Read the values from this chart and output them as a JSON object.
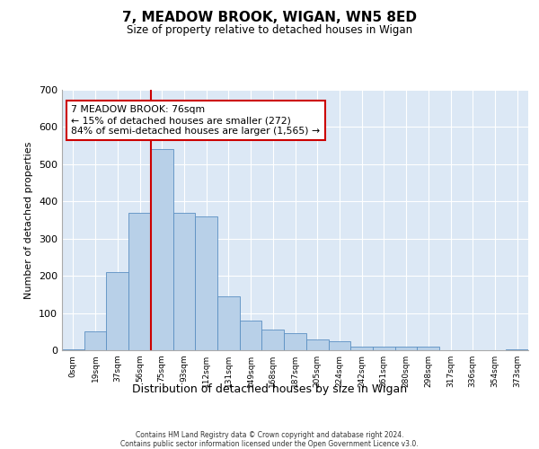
{
  "title": "7, MEADOW BROOK, WIGAN, WN5 8ED",
  "subtitle": "Size of property relative to detached houses in Wigan",
  "xlabel": "Distribution of detached houses by size in Wigan",
  "ylabel": "Number of detached properties",
  "bar_labels": [
    "0sqm",
    "19sqm",
    "37sqm",
    "56sqm",
    "75sqm",
    "93sqm",
    "112sqm",
    "131sqm",
    "149sqm",
    "168sqm",
    "187sqm",
    "205sqm",
    "224sqm",
    "242sqm",
    "261sqm",
    "280sqm",
    "298sqm",
    "317sqm",
    "336sqm",
    "354sqm",
    "373sqm"
  ],
  "bar_values": [
    2,
    50,
    210,
    370,
    540,
    370,
    360,
    145,
    80,
    55,
    45,
    30,
    25,
    10,
    10,
    10,
    10,
    0,
    0,
    0,
    2
  ],
  "bar_color": "#b8d0e8",
  "bar_edge_color": "#5a8fc2",
  "vline_index": 4,
  "vline_color": "#cc0000",
  "annotation_text": "7 MEADOW BROOK: 76sqm\n← 15% of detached houses are smaller (272)\n84% of semi-detached houses are larger (1,565) →",
  "annotation_box_color": "#cc0000",
  "ylim": [
    0,
    700
  ],
  "yticks": [
    0,
    100,
    200,
    300,
    400,
    500,
    600,
    700
  ],
  "background_color": "#dce8f5",
  "grid_color": "#ffffff",
  "footer_line1": "Contains HM Land Registry data © Crown copyright and database right 2024.",
  "footer_line2": "Contains public sector information licensed under the Open Government Licence v3.0."
}
